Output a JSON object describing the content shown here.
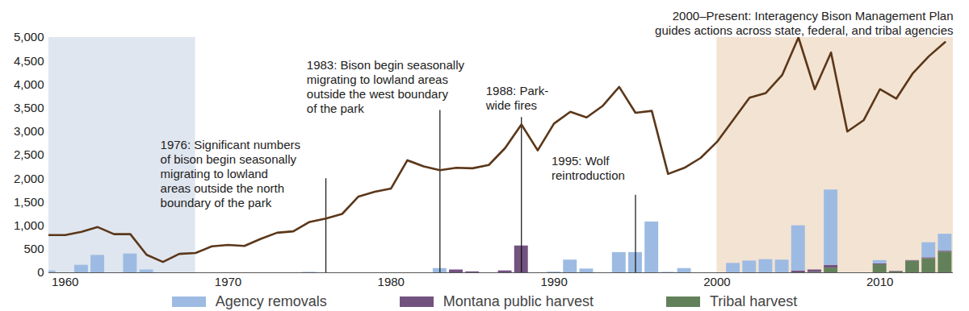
{
  "chart_data": {
    "type": "combo",
    "x": [
      1959,
      1960,
      1961,
      1962,
      1963,
      1964,
      1965,
      1966,
      1967,
      1968,
      1969,
      1970,
      1971,
      1972,
      1973,
      1974,
      1975,
      1976,
      1977,
      1978,
      1979,
      1980,
      1981,
      1982,
      1983,
      1984,
      1985,
      1986,
      1987,
      1988,
      1989,
      1990,
      1991,
      1992,
      1993,
      1994,
      1995,
      1996,
      1997,
      1998,
      1999,
      2000,
      2001,
      2002,
      2003,
      2004,
      2005,
      2006,
      2007,
      2008,
      2009,
      2010,
      2011,
      2012,
      2013,
      2014
    ],
    "series": [
      {
        "type": "line",
        "color": "#5b3719",
        "values": [
          800,
          800,
          870,
          970,
          820,
          820,
          380,
          230,
          400,
          420,
          560,
          590,
          570,
          720,
          850,
          880,
          1080,
          1150,
          1250,
          1620,
          1720,
          1790,
          2390,
          2260,
          2180,
          2230,
          2220,
          2290,
          2650,
          3150,
          2600,
          3170,
          3420,
          3300,
          3550,
          3950,
          3400,
          3440,
          2100,
          2230,
          2440,
          2780,
          3250,
          3720,
          3820,
          4200,
          5000,
          3900,
          4680,
          3000,
          3240,
          3900,
          3700,
          4230,
          4600,
          4900
        ]
      },
      {
        "name": "Agency removals",
        "type": "bar",
        "color": "#9dbbe2",
        "values": [
          40,
          0,
          160,
          370,
          0,
          400,
          60,
          0,
          0,
          0,
          0,
          0,
          0,
          0,
          0,
          0,
          10,
          0,
          0,
          0,
          0,
          0,
          0,
          0,
          90,
          0,
          0,
          0,
          0,
          0,
          0,
          15,
          270,
          80,
          0,
          430,
          430,
          1080,
          10,
          90,
          0,
          0,
          200,
          250,
          280,
          270,
          960,
          0,
          1600,
          0,
          0,
          70,
          0,
          0,
          320,
          360
        ]
      },
      {
        "name": "Montana public harvest",
        "type": "bar",
        "color": "#72527f",
        "values": [
          0,
          0,
          0,
          0,
          0,
          0,
          0,
          0,
          0,
          0,
          0,
          0,
          0,
          0,
          0,
          0,
          0,
          0,
          0,
          0,
          0,
          0,
          0,
          0,
          0,
          60,
          20,
          0,
          40,
          570,
          0,
          0,
          0,
          0,
          0,
          0,
          0,
          0,
          0,
          0,
          0,
          0,
          0,
          0,
          0,
          0,
          40,
          50,
          60,
          0,
          0,
          20,
          10,
          10,
          20,
          20
        ]
      },
      {
        "name": "Tribal harvest",
        "type": "bar",
        "color": "#62815a",
        "values": [
          0,
          0,
          0,
          0,
          0,
          0,
          0,
          0,
          0,
          0,
          0,
          0,
          0,
          0,
          0,
          0,
          0,
          0,
          0,
          0,
          0,
          0,
          0,
          0,
          0,
          0,
          0,
          0,
          0,
          0,
          0,
          0,
          0,
          0,
          0,
          0,
          0,
          0,
          0,
          0,
          0,
          0,
          0,
          0,
          0,
          0,
          0,
          10,
          100,
          0,
          0,
          170,
          20,
          250,
          300,
          440
        ]
      }
    ],
    "stacked": true,
    "xlim": [
      1959,
      2014.5
    ],
    "xticks": [
      1960,
      1970,
      1980,
      1990,
      2000,
      2010
    ],
    "ylim": [
      0,
      5000
    ],
    "yticks": [
      0,
      500,
      {
        "value": 1000,
        "label": "1,000"
      },
      {
        "value": 1500,
        "label": "1,500"
      },
      {
        "value": 2000,
        "label": "2,000"
      },
      {
        "value": 2500,
        "label": "2,500"
      },
      {
        "value": 3000,
        "label": "3,000"
      },
      {
        "value": 3500,
        "label": "3,500"
      },
      {
        "value": 4000,
        "label": "4,000"
      },
      {
        "value": 4500,
        "label": "4,500"
      },
      {
        "value": 5000,
        "label": "5,000"
      }
    ],
    "grid": false,
    "legend": "bottom",
    "periods": [
      {
        "start": 1959,
        "end": 1968,
        "color": "#dfe6ef"
      },
      {
        "start": 2000,
        "end": 2014.5,
        "color": "#f3e3d3",
        "text": "2000–Present: Interagency Bison Management Plan\nguides actions across state, federal, and tribal agencies"
      }
    ],
    "annotations": [
      {
        "x": 1976,
        "text": "1976: Significant numbers\nof bison begin seasonally\nmigrating to lowland\nareas outside the north\nboundary of the park"
      },
      {
        "x": 1983,
        "text": "1983: Bison begin seasonally\nmigrating to lowland areas\noutside the west boundary\nof the park"
      },
      {
        "x": 1988,
        "text": "1988: Park-\nwide fires"
      },
      {
        "x": 1995,
        "text": "1995: Wolf\nreintroduction"
      }
    ]
  }
}
